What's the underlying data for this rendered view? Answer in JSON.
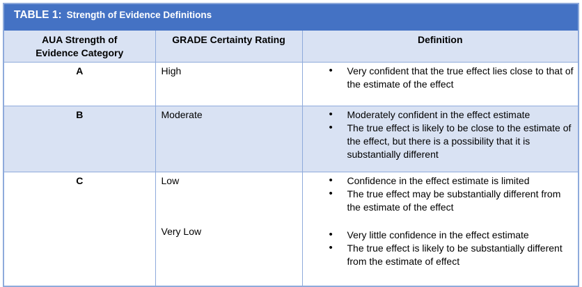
{
  "table": {
    "title_prefix": "TABLE 1:",
    "title_rest": "Strength of Evidence Definitions",
    "columns": [
      "AUA Strength of\nEvidence Category",
      "GRADE Certainty Rating",
      "Definition"
    ],
    "rows": [
      {
        "category": "A",
        "grades": [
          "High"
        ],
        "bullet_groups": [
          [
            "Very confident that the true effect lies close to that of the estimate of the effect"
          ]
        ]
      },
      {
        "category": "B",
        "grades": [
          "Moderate"
        ],
        "bullet_groups": [
          [
            "Moderately confident in the effect estimate",
            "The true effect is likely to be close to the estimate of the effect, but there is a possibility that it is substantially different"
          ]
        ]
      },
      {
        "category": "C",
        "grades": [
          "Low",
          "Very Low"
        ],
        "bullet_groups": [
          [
            "Confidence in the effect estimate is limited",
            "The true effect may be substantially different from the estimate of the effect"
          ],
          [
            "Very little confidence in the effect estimate",
            "The true effect is likely to be substantially different from the estimate of effect"
          ]
        ]
      }
    ]
  },
  "colors": {
    "title_bar": "#4472C4",
    "shaded_row": "#D9E2F3",
    "border": "#8EAADB",
    "title_text": "#FFFFFF",
    "body_text": "#000000"
  }
}
